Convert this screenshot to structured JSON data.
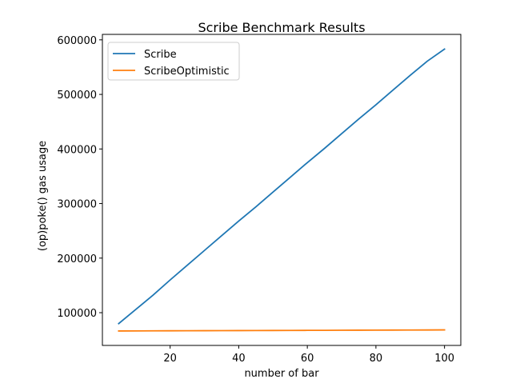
{
  "chart_data": {
    "type": "line",
    "title": "Scribe Benchmark Results",
    "xlabel": "number of bar",
    "ylabel": "(op)poke() gas usage",
    "xlim": [
      0.25,
      104.75
    ],
    "ylim": [
      40000,
      610000
    ],
    "xticks": [
      20,
      40,
      60,
      80,
      100
    ],
    "yticks": [
      100000,
      200000,
      300000,
      400000,
      500000,
      600000
    ],
    "grid": false,
    "legend_position": "upper-left",
    "series": [
      {
        "name": "Scribe",
        "color": "#1f77b4",
        "x": [
          5,
          10,
          15,
          20,
          25,
          30,
          35,
          40,
          45,
          50,
          55,
          60,
          65,
          70,
          75,
          80,
          85,
          90,
          95,
          100
        ],
        "y": [
          80000,
          106000,
          132000,
          160000,
          187000,
          214000,
          241000,
          268000,
          294000,
          321000,
          348000,
          375000,
          401000,
          428000,
          455000,
          481000,
          508000,
          535000,
          561000,
          583000
        ]
      },
      {
        "name": "ScribeOptimistic",
        "color": "#ff7f0e",
        "x": [
          5,
          10,
          15,
          20,
          25,
          30,
          35,
          40,
          45,
          50,
          55,
          60,
          65,
          70,
          75,
          80,
          85,
          90,
          95,
          100
        ],
        "y": [
          66500,
          66600,
          66700,
          66800,
          66900,
          67000,
          67100,
          67200,
          67300,
          67400,
          67500,
          67600,
          67700,
          67800,
          67900,
          68000,
          68100,
          68200,
          68300,
          68500
        ]
      }
    ]
  }
}
